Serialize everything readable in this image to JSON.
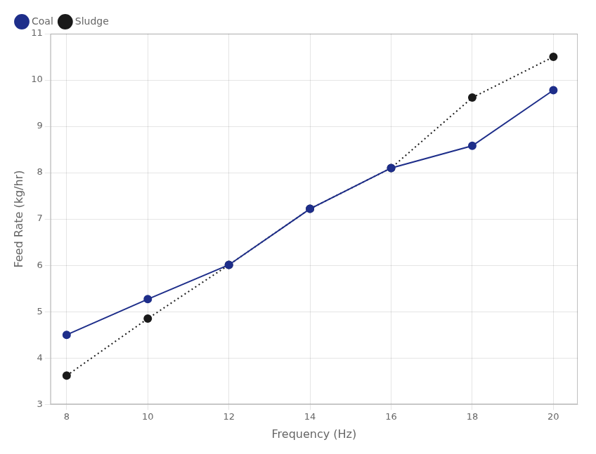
{
  "chart_data": {
    "type": "line",
    "xlabel": "Frequency (Hz)",
    "ylabel": "Feed Rate (kg/hr)",
    "x": [
      8,
      10,
      12,
      14,
      16,
      18,
      20
    ],
    "series": [
      {
        "name": "Coal",
        "color": "#1e2e8a",
        "marker": "circle",
        "line_style": "solid",
        "values": [
          4.5,
          5.27,
          6.01,
          7.22,
          8.1,
          8.58,
          9.78
        ]
      },
      {
        "name": "Sludge",
        "color": "#1a1a1a",
        "marker": "circle",
        "line_style": "dotted",
        "values": [
          3.62,
          4.85,
          6.01,
          7.22,
          8.1,
          9.62,
          10.5
        ]
      }
    ],
    "xlim": [
      7.6,
      20.6
    ],
    "ylim": [
      3,
      11
    ],
    "xticks": [
      8,
      10,
      12,
      14,
      16,
      18,
      20
    ],
    "yticks": [
      3,
      4,
      5,
      6,
      7,
      8,
      9,
      10,
      11
    ],
    "grid": true,
    "legend": "upper left"
  }
}
